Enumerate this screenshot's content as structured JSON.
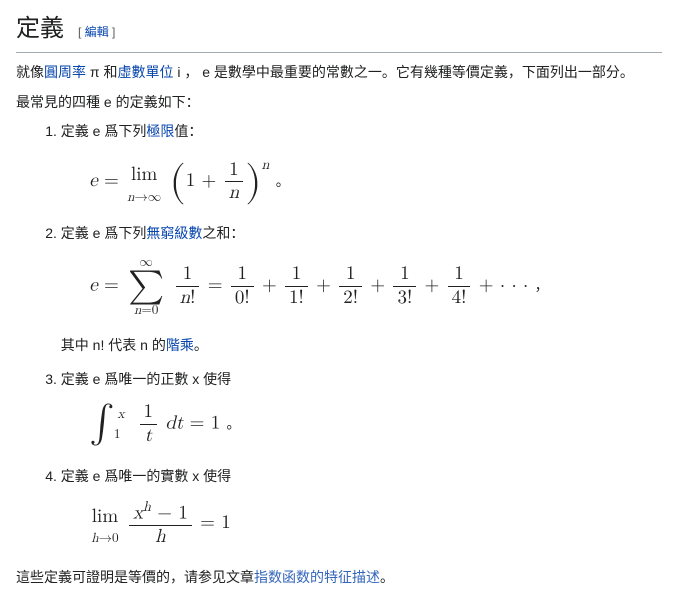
{
  "heading": {
    "title": "定義",
    "edit_bracket_open": "[",
    "edit_label": "編輯",
    "edit_bracket_close": "]"
  },
  "intro": {
    "text1": "就像",
    "link1": "圓周率",
    "text2": " π 和",
    "link2": "虛數單位",
    "text3": " i ， e 是數學中最重要的常數之一。它有幾種等價定義，下面列出一部分。"
  },
  "para2": "最常見的四種 e 的定義如下：",
  "item1": {
    "text1": "定義 e 爲下列",
    "link": "極限",
    "text2": "值："
  },
  "item2": {
    "text1": "定義 e 爲下列",
    "link": "無窮級數",
    "text2": "之和：",
    "sub1": "其中 n! 代表 n 的",
    "sublink": "階乘",
    "sub2": "。"
  },
  "item3": {
    "text": "定義 e 爲唯一的正數 x 使得"
  },
  "item4": {
    "text": "定義 e 爲唯一的實數 x 使得"
  },
  "footer": {
    "text1": "這些定義可證明是等價的，请参见文章",
    "link": "指数函数的特征描述",
    "text2": "。"
  }
}
